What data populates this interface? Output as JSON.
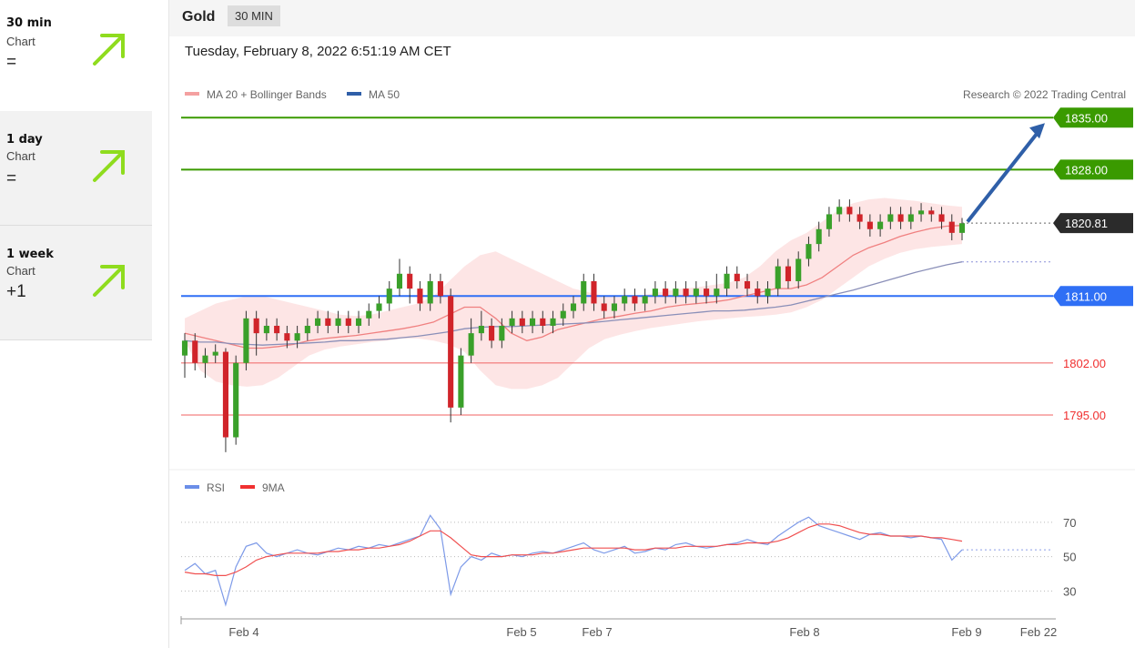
{
  "sidebar": {
    "items": [
      {
        "period": "30 min",
        "label": "Chart",
        "value": "="
      },
      {
        "period": "1 day",
        "label": "Chart",
        "value": "="
      },
      {
        "period": "1 week",
        "label": "Chart",
        "value": "+1"
      }
    ],
    "icon": "arrow-up-right-icon",
    "accent": "#8fdc1e"
  },
  "header": {
    "title": "Gold",
    "badge": "30 MIN"
  },
  "datetime": "Tuesday, February 8, 2022 6:51:19 AM CET",
  "copyright": "Research © 2022 Trading Central",
  "chart_data": [
    {
      "type": "candlestick",
      "legend": [
        "MA 20 + Bollinger Bands",
        "MA 50"
      ],
      "legend_colors": [
        "#f4a0a0",
        "#2f5fa8"
      ],
      "x_ticks": [
        "Feb 4",
        "Feb 5",
        "Feb 7",
        "Feb 8",
        "Feb 9",
        "Feb 22"
      ],
      "ylim": [
        1789.0,
        1836.5
      ],
      "last_price": "1820.81",
      "levels": [
        {
          "value": 1835.0,
          "label": "1835.00",
          "color": "#3a9a00",
          "kind": "resistance"
        },
        {
          "value": 1828.0,
          "label": "1828.00",
          "color": "#3a9a00",
          "kind": "resistance"
        },
        {
          "value": 1811.0,
          "label": "1811.00",
          "color": "#2f6ff5",
          "kind": "pivot"
        },
        {
          "value": 1802.0,
          "label": "1802.00",
          "color": "#f26b6b",
          "kind": "support"
        },
        {
          "value": 1795.0,
          "label": "1795.00",
          "color": "#f26b6b",
          "kind": "support"
        }
      ],
      "projection": {
        "from": 1821.0,
        "to": 1835.0
      },
      "ma20": [
        1806,
        1805.5,
        1805,
        1804.5,
        1804,
        1804,
        1804.2,
        1804.5,
        1805,
        1805.3,
        1805.5,
        1805.7,
        1806,
        1806.3,
        1806.6,
        1807,
        1807.5,
        1808.5,
        1809.5,
        1809.5,
        1808,
        1806,
        1805,
        1805.5,
        1806.5,
        1807,
        1807.5,
        1808,
        1808.3,
        1808.7,
        1809,
        1809.5,
        1809.8,
        1810,
        1810.2,
        1810.5,
        1811,
        1811.5,
        1812,
        1812,
        1812.5,
        1813.5,
        1815,
        1816.5,
        1817.5,
        1818.2,
        1819,
        1819.6,
        1820.1,
        1820.4,
        1820.5
      ],
      "ma50": [
        1805,
        1804.8,
        1804.8,
        1804.6,
        1804.5,
        1804.4,
        1804.5,
        1804.6,
        1804.7,
        1804.8,
        1805,
        1805,
        1805.1,
        1805.2,
        1805.4,
        1805.6,
        1805.9,
        1806.2,
        1806.6,
        1806.8,
        1806.9,
        1806.9,
        1807,
        1807.1,
        1807.2,
        1807.3,
        1807.4,
        1807.6,
        1807.8,
        1808,
        1808.2,
        1808.4,
        1808.6,
        1808.8,
        1809,
        1809,
        1809.1,
        1809.3,
        1809.5,
        1809.8,
        1810.3,
        1810.8,
        1811.3,
        1811.8,
        1812.4,
        1813,
        1813.6,
        1814.2,
        1814.7,
        1815.2,
        1815.6
      ],
      "bb_upper": [
        1808,
        1809,
        1810,
        1810.5,
        1811,
        1811,
        1810.5,
        1810,
        1809.5,
        1809,
        1808.5,
        1808.3,
        1808.5,
        1809,
        1809.5,
        1810,
        1811,
        1813,
        1815,
        1816.5,
        1817,
        1816,
        1815,
        1814,
        1813,
        1812,
        1811.5,
        1811,
        1810.8,
        1811,
        1811.3,
        1811.7,
        1812,
        1812.2,
        1812.5,
        1812.8,
        1813.5,
        1815,
        1817,
        1818.5,
        1819.5,
        1821,
        1822.5,
        1823.5,
        1824,
        1824.2,
        1824,
        1823.8,
        1823.5,
        1823.2,
        1823
      ],
      "bb_lower": [
        1805,
        1801,
        1799.5,
        1799,
        1798.8,
        1799,
        1800,
        1801.5,
        1803,
        1803.8,
        1804.2,
        1804.5,
        1804.8,
        1805,
        1805.3,
        1805.3,
        1805,
        1804.5,
        1803.5,
        1801,
        1799,
        1798.5,
        1798.5,
        1799,
        1800,
        1802,
        1804,
        1805.2,
        1805.8,
        1806.3,
        1806.7,
        1807,
        1807.3,
        1807.6,
        1807.8,
        1808,
        1808.2,
        1808.3,
        1808.5,
        1808.8,
        1809.5,
        1810.5,
        1812,
        1813.5,
        1815,
        1816,
        1816.8,
        1817.3,
        1817.6,
        1817.8,
        1818
      ],
      "candles": [
        [
          1803,
          1805,
          1806,
          1800
        ],
        [
          1805,
          1802,
          1806,
          1801
        ],
        [
          1802,
          1803,
          1804,
          1800
        ],
        [
          1803,
          1803.5,
          1804.5,
          1802
        ],
        [
          1803.5,
          1792,
          1804,
          1790
        ],
        [
          1792,
          1802,
          1803,
          1791
        ],
        [
          1802,
          1808,
          1809,
          1801
        ],
        [
          1808,
          1806,
          1809,
          1803
        ],
        [
          1806,
          1807,
          1808,
          1805
        ],
        [
          1807,
          1806,
          1808,
          1805
        ],
        [
          1806,
          1805,
          1807,
          1804
        ],
        [
          1805,
          1806,
          1807,
          1804
        ],
        [
          1806,
          1807,
          1808,
          1805
        ],
        [
          1807,
          1808,
          1809,
          1806
        ],
        [
          1808,
          1807,
          1809,
          1806
        ],
        [
          1807,
          1808,
          1809,
          1806
        ],
        [
          1808,
          1807,
          1809,
          1806
        ],
        [
          1807,
          1808,
          1809,
          1806
        ],
        [
          1808,
          1809,
          1810,
          1807
        ],
        [
          1809,
          1810,
          1811,
          1808
        ],
        [
          1810,
          1812,
          1813,
          1809
        ],
        [
          1812,
          1814,
          1816,
          1811
        ],
        [
          1814,
          1812,
          1815,
          1810
        ],
        [
          1812,
          1810,
          1813,
          1809
        ],
        [
          1810,
          1813,
          1814,
          1809
        ],
        [
          1813,
          1811,
          1814,
          1810
        ],
        [
          1811,
          1796,
          1812,
          1794
        ],
        [
          1796,
          1803,
          1804,
          1795
        ],
        [
          1803,
          1806,
          1808,
          1802
        ],
        [
          1806,
          1807,
          1809,
          1805
        ],
        [
          1807,
          1805,
          1808,
          1804
        ],
        [
          1805,
          1807,
          1808,
          1804
        ],
        [
          1807,
          1808,
          1809,
          1806
        ],
        [
          1808,
          1807,
          1809,
          1806
        ],
        [
          1807,
          1808,
          1809,
          1806
        ],
        [
          1808,
          1807,
          1809,
          1806
        ],
        [
          1807,
          1808,
          1809,
          1806
        ],
        [
          1808,
          1809,
          1810,
          1807
        ],
        [
          1809,
          1810,
          1811,
          1808
        ],
        [
          1810,
          1813,
          1814,
          1809
        ],
        [
          1813,
          1810,
          1814,
          1809
        ],
        [
          1810,
          1809,
          1811,
          1808
        ],
        [
          1809,
          1810,
          1811,
          1808
        ],
        [
          1810,
          1811,
          1812,
          1809
        ],
        [
          1811,
          1810,
          1812,
          1809
        ],
        [
          1810,
          1811,
          1812,
          1809
        ],
        [
          1811,
          1812,
          1813,
          1810
        ],
        [
          1812,
          1811,
          1813,
          1810
        ],
        [
          1811,
          1812,
          1813,
          1810
        ],
        [
          1812,
          1811,
          1813,
          1810
        ],
        [
          1811,
          1812,
          1813,
          1810
        ],
        [
          1812,
          1811,
          1813,
          1810
        ],
        [
          1811,
          1812,
          1814,
          1810
        ],
        [
          1812,
          1814,
          1815,
          1811
        ],
        [
          1814,
          1813,
          1815,
          1812
        ],
        [
          1813,
          1812,
          1814,
          1811
        ],
        [
          1812,
          1811,
          1813,
          1810
        ],
        [
          1811,
          1812,
          1813,
          1810
        ],
        [
          1812,
          1815,
          1816,
          1811
        ],
        [
          1815,
          1813,
          1816,
          1812
        ],
        [
          1813,
          1816,
          1817,
          1812
        ],
        [
          1816,
          1818,
          1819,
          1815
        ],
        [
          1818,
          1820,
          1821,
          1817
        ],
        [
          1820,
          1822,
          1823,
          1819
        ],
        [
          1822,
          1823,
          1824,
          1821
        ],
        [
          1823,
          1822,
          1824,
          1821
        ],
        [
          1822,
          1821,
          1823,
          1820
        ],
        [
          1821,
          1820,
          1822,
          1819
        ],
        [
          1820,
          1821,
          1822,
          1819
        ],
        [
          1821,
          1822,
          1823,
          1820
        ],
        [
          1822,
          1821,
          1823,
          1820
        ],
        [
          1821,
          1822,
          1823,
          1820
        ],
        [
          1822,
          1822.5,
          1823.5,
          1821
        ],
        [
          1822.5,
          1822,
          1823,
          1821
        ],
        [
          1822,
          1821,
          1823,
          1820
        ],
        [
          1821,
          1819.5,
          1822,
          1818.5
        ],
        [
          1819.5,
          1820.8,
          1821.5,
          1818.5
        ]
      ]
    },
    {
      "type": "line",
      "legend": [
        "RSI",
        "9MA"
      ],
      "legend_colors": [
        "#6b8ee8",
        "#f03030"
      ],
      "y_ticks": [
        "70",
        "50",
        "30"
      ],
      "ylim": [
        18,
        80
      ],
      "rsi": [
        42,
        46,
        40,
        42,
        22,
        44,
        56,
        58,
        52,
        50,
        52,
        54,
        52,
        51,
        53,
        55,
        54,
        56,
        55,
        57,
        56,
        58,
        60,
        62,
        74,
        66,
        28,
        44,
        50,
        48,
        52,
        50,
        51,
        50,
        52,
        53,
        52,
        54,
        56,
        58,
        54,
        52,
        54,
        56,
        52,
        53,
        55,
        54,
        57,
        58,
        56,
        55,
        56,
        57,
        58,
        60,
        58,
        57,
        62,
        66,
        70,
        73,
        68,
        66,
        64,
        62,
        60,
        63,
        64,
        62,
        62,
        61,
        62,
        61,
        60,
        48,
        54
      ],
      "ma9": [
        41,
        40,
        40,
        39,
        39,
        41,
        44,
        48,
        50,
        51,
        52,
        52,
        52,
        52,
        53,
        53,
        54,
        54,
        55,
        55,
        56,
        57,
        59,
        62,
        65,
        65,
        61,
        56,
        51,
        50,
        50,
        50,
        51,
        51,
        51,
        52,
        52,
        53,
        54,
        55,
        55,
        55,
        55,
        55,
        54,
        54,
        55,
        55,
        55,
        56,
        56,
        56,
        56,
        57,
        57,
        58,
        58,
        58,
        59,
        61,
        64,
        67,
        69,
        69,
        68,
        66,
        64,
        63,
        63,
        62,
        62,
        62,
        62,
        61,
        61,
        60,
        59
      ]
    }
  ]
}
